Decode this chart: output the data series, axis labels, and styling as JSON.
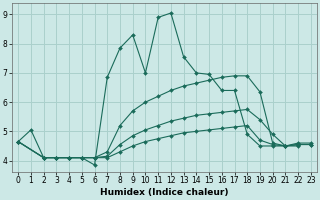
{
  "xlabel": "Humidex (Indice chaleur)",
  "bg_color": "#cce8e6",
  "grid_color": "#aad0cc",
  "line_color": "#1a6b5a",
  "xlim": [
    -0.5,
    23.5
  ],
  "ylim": [
    3.6,
    9.4
  ],
  "yticks": [
    4,
    5,
    6,
    7,
    8,
    9
  ],
  "xticks": [
    0,
    1,
    2,
    3,
    4,
    5,
    6,
    7,
    8,
    9,
    10,
    11,
    12,
    13,
    14,
    15,
    16,
    17,
    18,
    19,
    20,
    21,
    22,
    23
  ],
  "lines": [
    {
      "x": [
        0,
        1,
        2,
        3,
        4,
        5,
        6,
        7,
        8,
        9,
        10,
        11,
        12,
        13,
        14,
        15,
        16,
        17,
        18,
        19,
        20,
        21,
        22
      ],
      "y": [
        4.65,
        5.05,
        4.1,
        4.1,
        4.1,
        4.1,
        3.85,
        6.85,
        7.85,
        8.3,
        7.0,
        8.9,
        9.05,
        7.55,
        7.0,
        6.95,
        6.4,
        6.4,
        4.9,
        4.5,
        4.5,
        4.5,
        4.5
      ]
    },
    {
      "x": [
        0,
        2,
        3,
        4,
        5,
        6,
        7,
        8,
        9,
        10,
        11,
        12,
        13,
        14,
        15,
        16,
        17,
        18,
        19,
        20,
        21,
        22,
        23
      ],
      "y": [
        4.65,
        4.1,
        4.1,
        4.1,
        4.1,
        4.1,
        4.3,
        5.2,
        5.7,
        6.0,
        6.2,
        6.4,
        6.55,
        6.65,
        6.75,
        6.85,
        6.9,
        6.9,
        6.35,
        4.6,
        4.5,
        4.6,
        4.6
      ]
    },
    {
      "x": [
        0,
        2,
        3,
        4,
        5,
        6,
        7,
        8,
        9,
        10,
        11,
        12,
        13,
        14,
        15,
        16,
        17,
        18,
        19,
        20,
        21,
        22,
        23
      ],
      "y": [
        4.65,
        4.1,
        4.1,
        4.1,
        4.1,
        4.1,
        4.15,
        4.55,
        4.85,
        5.05,
        5.2,
        5.35,
        5.45,
        5.55,
        5.6,
        5.65,
        5.7,
        5.75,
        5.4,
        4.9,
        4.5,
        4.55,
        4.55
      ]
    },
    {
      "x": [
        0,
        2,
        3,
        4,
        5,
        6,
        7,
        8,
        9,
        10,
        11,
        12,
        13,
        14,
        15,
        16,
        17,
        18,
        19,
        20,
        21,
        22,
        23
      ],
      "y": [
        4.65,
        4.1,
        4.1,
        4.1,
        4.1,
        4.1,
        4.1,
        4.3,
        4.5,
        4.65,
        4.75,
        4.85,
        4.95,
        5.0,
        5.05,
        5.1,
        5.15,
        5.2,
        4.7,
        4.55,
        4.5,
        4.55,
        4.55
      ]
    }
  ]
}
